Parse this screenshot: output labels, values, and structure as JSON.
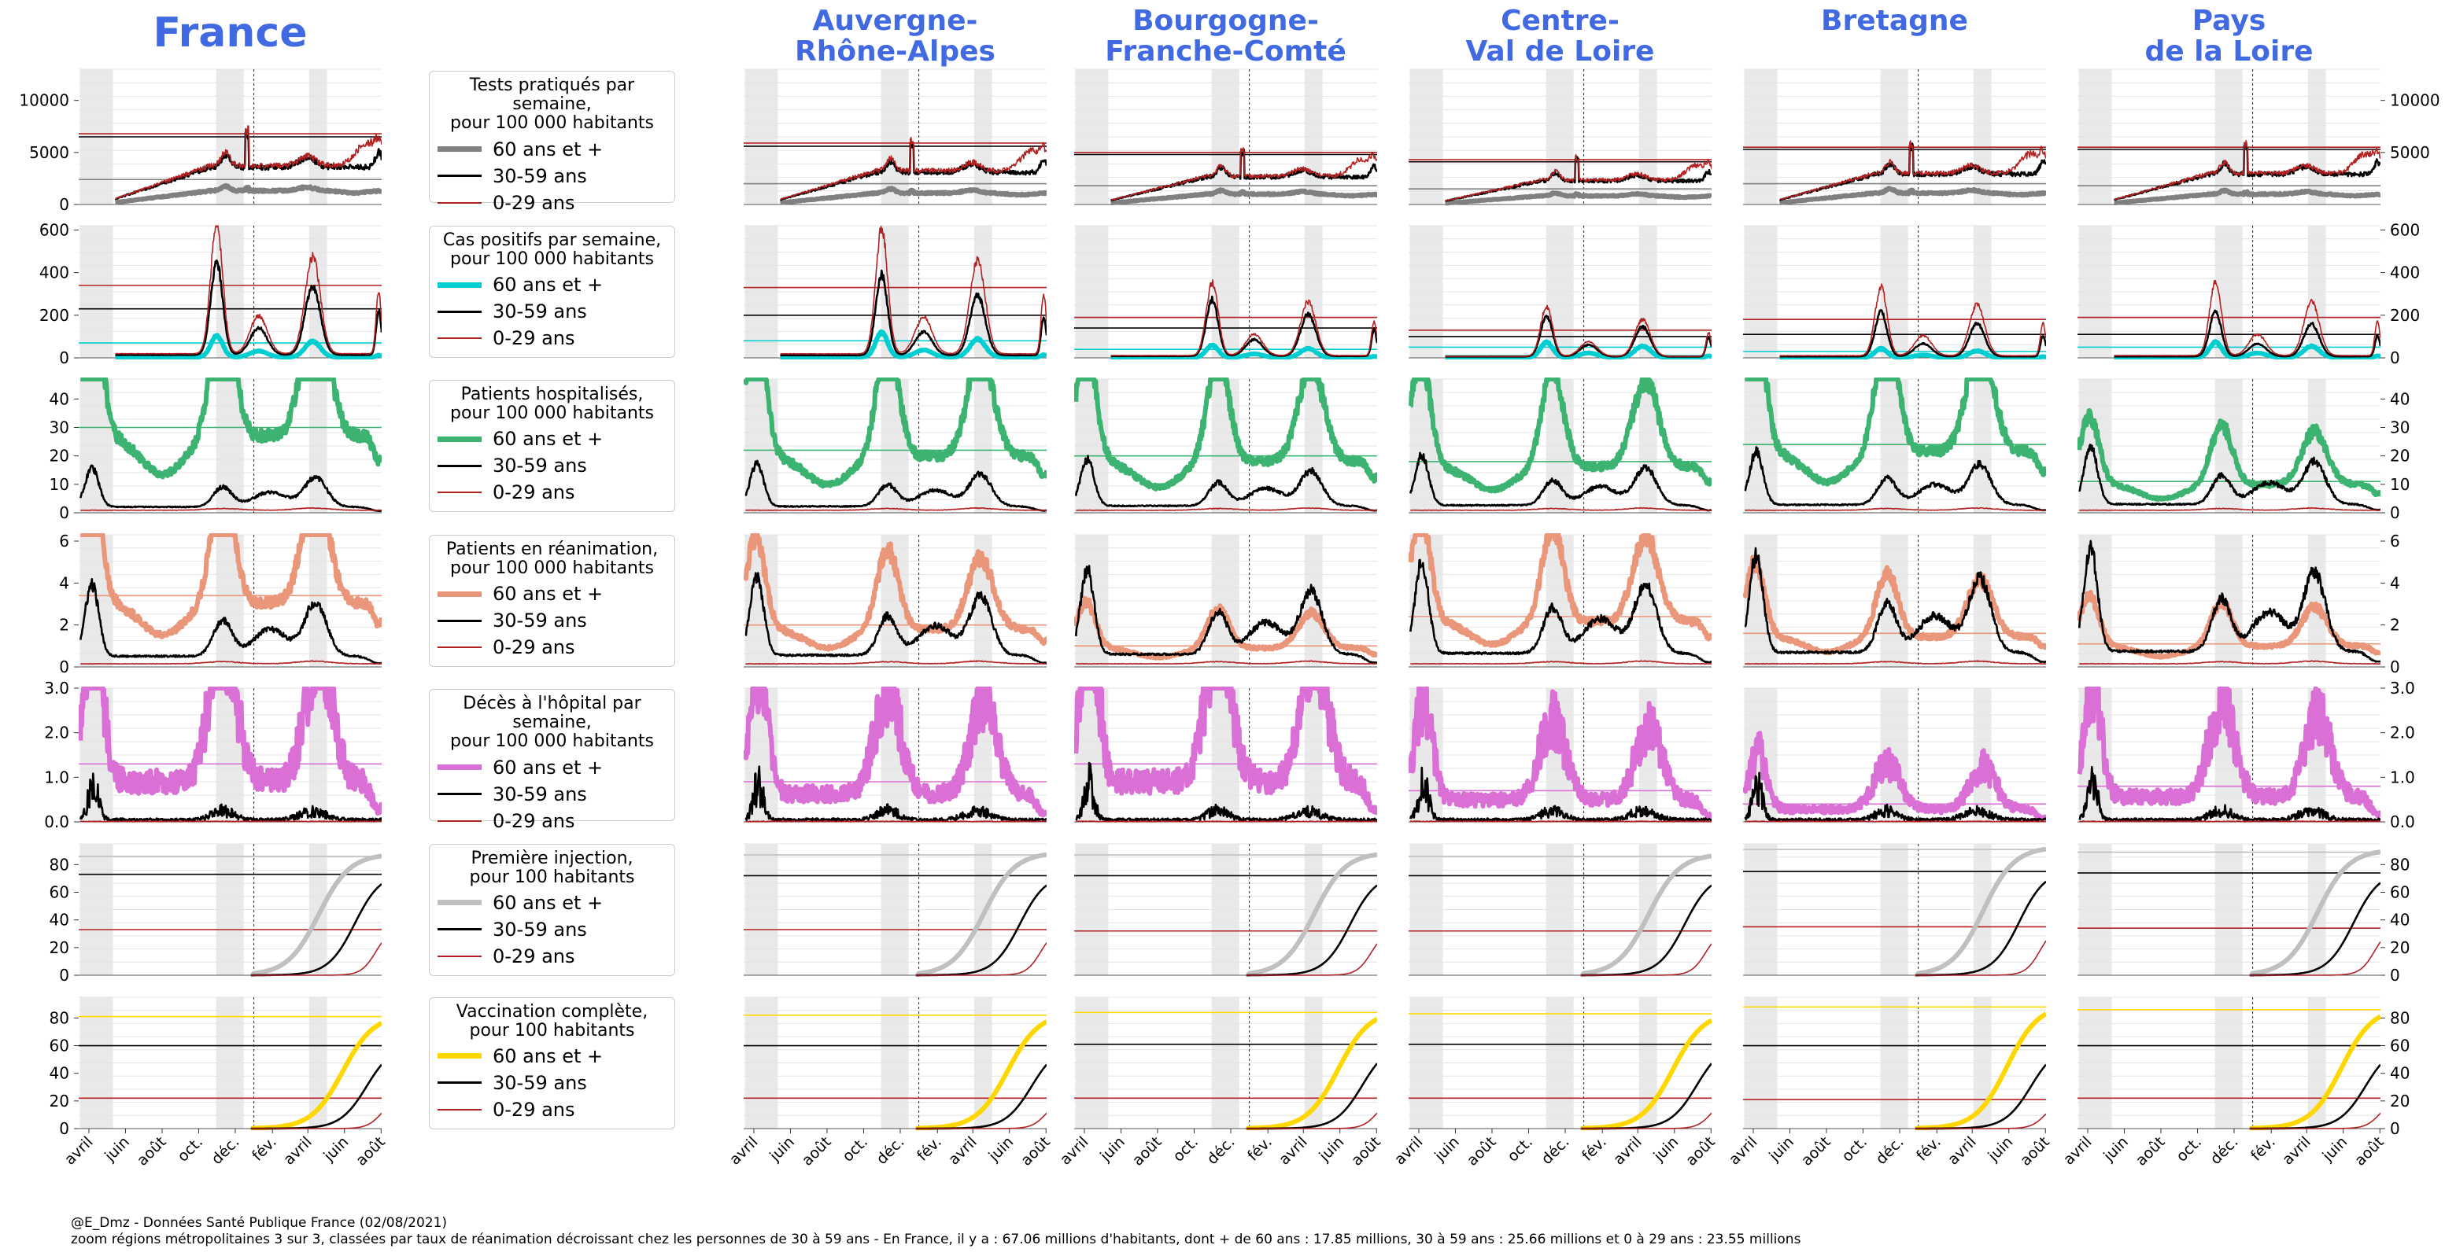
{
  "footer": {
    "line1": "@E_Dmz - Données Santé Publique France (02/08/2021)",
    "line2": "zoom régions métropolitaines 3 sur 3, classées par taux de réanimation décroissant chez les personnes de 30 à 59 ans - En France, il y a : 67.06 millions d'habitants, dont + de 60 ans : 17.85 millions, 30 à 59 ans : 25.66 millions et 0 à 29 ans : 23.55 millions"
  },
  "colors": {
    "title": "#4169E1",
    "age_30_59": "#000000",
    "age_0_29": "#B22222",
    "shade": "#e9e9e9",
    "tests_60": "#808080",
    "cases_60": "#00CED1",
    "hosp_60": "#3CB371",
    "icu_60": "#E9967A",
    "deaths_60": "#DA70D6",
    "dose1_60": "#C0C0C0",
    "full_60": "#FFD700"
  },
  "chart_data": {
    "type": "line",
    "x_tick_labels": [
      "avril",
      "juin",
      "août",
      "oct.",
      "déc.",
      "fév.",
      "avril",
      "juin",
      "août"
    ],
    "x_range": [
      "2020-03-15",
      "2021-08-02"
    ],
    "vertical_dashed_line": "2021-01-01",
    "shaded_periods": [
      [
        "2020-03-17",
        "2020-05-11"
      ],
      [
        "2020-10-30",
        "2020-12-15"
      ],
      [
        "2021-04-03",
        "2021-05-03"
      ]
    ],
    "regions": [
      "France",
      "Auvergne-\nRhône-Alpes",
      "Bourgogne-\nFranche-Comté",
      "Centre-\nVal de Loire",
      "Bretagne",
      "Pays\nde la Loire"
    ],
    "series_names": [
      "60 ans et +",
      "30-59 ans",
      "0-29 ans"
    ],
    "rows": [
      {
        "key": "tests",
        "legend_title": "Tests pratiqués par semaine,\npour 100 000 habitants",
        "ylim": [
          0,
          13000
        ],
        "left_ticks": [
          0,
          5000,
          10000
        ],
        "right_ticks": [
          0,
          5000,
          10000
        ],
        "color_60": "#808080",
        "start_date": "2020-05-15",
        "profiles": {
          "60": [
            0.8,
            1.2,
            2.0,
            2.5,
            3.0,
            2.8,
            2.7,
            2.8,
            2.9,
            2.6,
            2.4,
            2.2
          ],
          "30": [
            0.8,
            1.4,
            2.4,
            3.0,
            3.5,
            3.3,
            3.2,
            3.6,
            3.5,
            3.0,
            3.2,
            4.8
          ],
          "0": [
            0.7,
            1.4,
            2.5,
            3.2,
            3.6,
            3.4,
            3.3,
            3.6,
            4.6,
            4.2,
            4.0,
            6.0
          ]
        },
        "spike_date": "2020-12-22",
        "regions": [
          [
            2400,
            6500,
            6800
          ],
          [
            2000,
            5600,
            5900
          ],
          [
            1800,
            4800,
            5000
          ],
          [
            1500,
            4100,
            4300
          ],
          [
            2000,
            5300,
            5500
          ],
          [
            1800,
            5300,
            5500
          ]
        ]
      },
      {
        "key": "cases",
        "legend_title": "Cas positifs par semaine,\npour 100 000 habitants",
        "ylim": [
          0,
          620
        ],
        "left_ticks": [
          0,
          200,
          400,
          600
        ],
        "right_ticks": [
          0,
          200,
          400,
          600
        ],
        "color_60": "#00CED1",
        "start_date": "2020-05-15",
        "regions": [
          [
            70,
            230,
            340
          ],
          [
            80,
            200,
            330
          ],
          [
            40,
            140,
            190
          ],
          [
            50,
            100,
            130
          ],
          [
            30,
            110,
            180
          ],
          [
            50,
            110,
            190
          ]
        ]
      },
      {
        "key": "hosp",
        "legend_title": "Patients hospitalisés,\npour 100 000 habitants",
        "ylim": [
          0,
          47
        ],
        "left_ticks": [
          0,
          10,
          20,
          30,
          40
        ],
        "right_ticks": [
          0,
          10,
          20,
          30,
          40
        ],
        "color_60": "#3CB371",
        "start_date": "2020-03-18",
        "regions": [
          [
            30,
            0,
            0
          ],
          [
            22,
            0,
            0
          ],
          [
            20,
            0,
            0
          ],
          [
            18,
            0,
            0
          ],
          [
            24,
            0,
            0
          ],
          [
            11,
            0,
            0
          ]
        ]
      },
      {
        "key": "icu",
        "legend_title": "Patients en réanimation,\npour 100 000 habitants",
        "ylim": [
          0,
          6.3
        ],
        "left_ticks": [
          0,
          2,
          4,
          6
        ],
        "right_ticks": [
          0,
          2,
          4,
          6
        ],
        "color_60": "#E9967A",
        "start_date": "2020-03-18",
        "regions": [
          [
            3.4,
            0,
            0
          ],
          [
            2.0,
            0,
            0
          ],
          [
            1.0,
            0,
            0
          ],
          [
            2.4,
            0,
            0
          ],
          [
            1.6,
            0,
            0
          ],
          [
            1.1,
            0,
            0
          ]
        ]
      },
      {
        "key": "deaths",
        "legend_title": "Décès à l'hôpital par semaine,\npour 100 000 habitants",
        "ylim": [
          0,
          3.0
        ],
        "left_ticks": [
          0.0,
          1.0,
          2.0,
          3.0
        ],
        "right_ticks": [
          0.0,
          1.0,
          2.0,
          3.0
        ],
        "color_60": "#DA70D6",
        "start_date": "2020-03-18",
        "regions": [
          [
            1.3,
            0,
            0
          ],
          [
            0.9,
            0,
            0
          ],
          [
            1.3,
            0,
            0
          ],
          [
            0.7,
            0,
            0
          ],
          [
            0.4,
            0,
            0
          ],
          [
            0.8,
            0,
            0
          ]
        ]
      },
      {
        "key": "dose1",
        "legend_title": "Première injection,\npour 100 habitants",
        "ylim": [
          0,
          95
        ],
        "left_ticks": [
          0,
          20,
          40,
          60,
          80
        ],
        "right_ticks": [
          0,
          20,
          40,
          60,
          80
        ],
        "color_60": "#C0C0C0",
        "start_date": "2020-12-27",
        "regions": [
          [
            86,
            73,
            33
          ],
          [
            87,
            72,
            33
          ],
          [
            87,
            72,
            32
          ],
          [
            86,
            72,
            32
          ],
          [
            91,
            75,
            35
          ],
          [
            89,
            74,
            34
          ]
        ]
      },
      {
        "key": "full",
        "legend_title": "Vaccination complète,\npour 100 habitants",
        "ylim": [
          0,
          95
        ],
        "left_ticks": [
          0,
          20,
          40,
          60,
          80
        ],
        "right_ticks": [
          0,
          20,
          40,
          60,
          80
        ],
        "color_60": "#FFD700",
        "start_date": "2020-12-27",
        "regions": [
          [
            81,
            60,
            22
          ],
          [
            82,
            60,
            22
          ],
          [
            84,
            61,
            22
          ],
          [
            83,
            61,
            22
          ],
          [
            88,
            60,
            21
          ],
          [
            86,
            60,
            22
          ]
        ]
      }
    ]
  }
}
